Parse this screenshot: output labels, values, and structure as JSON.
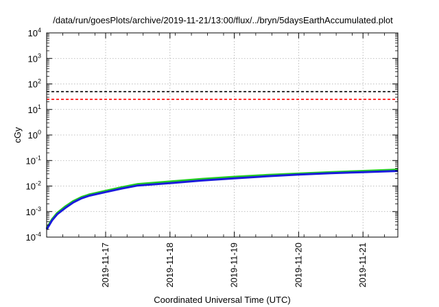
{
  "chart_data": {
    "type": "line",
    "title": "/data/run/goesPlots/archive/2019-11-21/13:00/flux/../bryn/5daysEarthAccumulated.plot",
    "xlabel": "Coordinated Universal Time (UTC)",
    "ylabel": "cGy",
    "yscale": "log",
    "ylim": [
      0.0001,
      10000
    ],
    "xlim": [
      "2019-11-16T02:00",
      "2019-11-21T13:00"
    ],
    "yticks": [
      {
        "base": "10",
        "exp": "4"
      },
      {
        "base": "10",
        "exp": "3"
      },
      {
        "base": "10",
        "exp": "2"
      },
      {
        "base": "10",
        "exp": "1"
      },
      {
        "base": "10",
        "exp": "0"
      },
      {
        "base": "10",
        "exp": "-1"
      },
      {
        "base": "10",
        "exp": "-2"
      },
      {
        "base": "10",
        "exp": "-3"
      },
      {
        "base": "10",
        "exp": "-4"
      }
    ],
    "xticks": [
      "2019-11-17",
      "2019-11-18",
      "2019-11-19",
      "2019-11-20",
      "2019-11-21"
    ],
    "grid": true,
    "reference_lines": [
      {
        "value": 50,
        "color": "#000000",
        "style": "dashed"
      },
      {
        "value": 25,
        "color": "#ff0000",
        "style": "dashed"
      }
    ],
    "series": [
      {
        "color": "#22cc22",
        "x": [
          "2019-11-16T02:00",
          "2019-11-16T04:00",
          "2019-11-16T06:00",
          "2019-11-16T09:00",
          "2019-11-16T12:00",
          "2019-11-16T15:00",
          "2019-11-16T18:00",
          "2019-11-17T00:00",
          "2019-11-17T06:00",
          "2019-11-17T12:00",
          "2019-11-18T00:00",
          "2019-11-18T12:00",
          "2019-11-19T00:00",
          "2019-11-19T12:00",
          "2019-11-20T00:00",
          "2019-11-20T12:00",
          "2019-11-21T00:00",
          "2019-11-21T13:00"
        ],
        "y": [
          0.00022,
          0.0005,
          0.0009,
          0.0016,
          0.0026,
          0.0037,
          0.0047,
          0.0065,
          0.009,
          0.012,
          0.015,
          0.019,
          0.023,
          0.027,
          0.031,
          0.035,
          0.039,
          0.044
        ]
      },
      {
        "color": "#1a1adc",
        "x": [
          "2019-11-16T02:00",
          "2019-11-16T04:00",
          "2019-11-16T06:00",
          "2019-11-16T09:00",
          "2019-11-16T12:00",
          "2019-11-16T15:00",
          "2019-11-16T18:00",
          "2019-11-17T00:00",
          "2019-11-17T06:00",
          "2019-11-17T12:00",
          "2019-11-18T00:00",
          "2019-11-18T12:00",
          "2019-11-19T00:00",
          "2019-11-19T12:00",
          "2019-11-20T00:00",
          "2019-11-20T12:00",
          "2019-11-21T00:00",
          "2019-11-21T13:00"
        ],
        "y": [
          0.0002,
          0.00045,
          0.0008,
          0.0014,
          0.0023,
          0.0033,
          0.0042,
          0.0058,
          0.008,
          0.0105,
          0.013,
          0.0165,
          0.02,
          0.024,
          0.028,
          0.032,
          0.035,
          0.039
        ]
      }
    ]
  }
}
